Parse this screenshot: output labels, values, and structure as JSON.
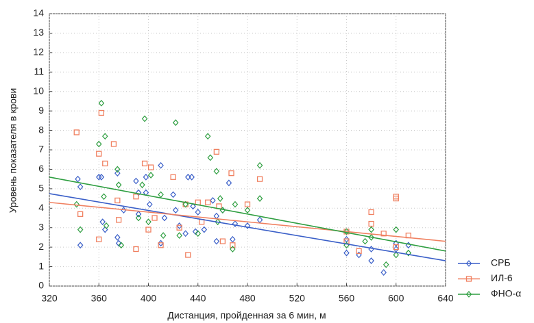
{
  "chart_data": {
    "type": "scatter",
    "x_label": "Дистанция, пройденная за 6 мин, м",
    "y_label": "Уровень показателя в крови",
    "xlim": [
      320,
      640
    ],
    "xticks": [
      320,
      360,
      400,
      440,
      480,
      520,
      560,
      600,
      640
    ],
    "ylim": [
      0,
      14
    ],
    "yticks": [
      0,
      1,
      2,
      3,
      4,
      5,
      6,
      7,
      8,
      9,
      10,
      11,
      12,
      13,
      14
    ],
    "grid": true,
    "legend": "right-bottom",
    "trend_x": [
      320,
      640
    ],
    "series": [
      {
        "name": "СРБ",
        "color": "#3a5fc8",
        "marker": "diamond",
        "trend": [
          4.75,
          1.3
        ],
        "x": [
          343,
          345,
          345,
          360,
          362,
          363,
          365,
          375,
          375,
          376,
          380,
          390,
          392,
          392,
          398,
          398,
          401,
          410,
          410,
          413,
          420,
          422,
          425,
          430,
          432,
          435,
          436,
          438,
          440,
          445,
          452,
          455,
          455,
          460,
          465,
          468,
          470,
          480,
          490,
          560,
          560,
          570,
          580,
          580,
          590,
          600,
          600,
          610
        ],
        "values": [
          5.5,
          5.1,
          2.1,
          5.6,
          5.6,
          3.3,
          2.9,
          5.8,
          2.5,
          2.2,
          3.9,
          5.4,
          4.8,
          3.7,
          5.6,
          4.8,
          4.2,
          6.2,
          2.2,
          3.5,
          4.7,
          3.9,
          3.1,
          2.7,
          5.6,
          5.6,
          4.1,
          2.8,
          3.8,
          2.9,
          4.4,
          3.6,
          2.3,
          3.9,
          5.3,
          2.4,
          3.2,
          3.1,
          3.4,
          2.4,
          1.7,
          1.6,
          1.9,
          1.3,
          0.7,
          2.2,
          1.9,
          2.1
        ]
      },
      {
        "name": "ИЛ-6",
        "color": "#f08060",
        "marker": "square",
        "trend": [
          4.3,
          2.3
        ],
        "x": [
          342,
          345,
          360,
          360,
          362,
          365,
          372,
          375,
          376,
          390,
          390,
          397,
          400,
          402,
          405,
          410,
          420,
          425,
          430,
          432,
          440,
          443,
          448,
          455,
          457,
          460,
          467,
          468,
          480,
          490,
          560,
          560,
          570,
          580,
          580,
          590,
          600,
          600,
          600,
          610
        ],
        "values": [
          7.9,
          3.7,
          6.8,
          2.4,
          8.9,
          6.3,
          7.3,
          4.4,
          3.4,
          4.6,
          1.9,
          6.3,
          2.9,
          6.1,
          3.5,
          2.1,
          5.6,
          3.0,
          4.2,
          1.6,
          4.3,
          3.3,
          4.3,
          6.9,
          4.1,
          2.3,
          5.8,
          2.1,
          4.2,
          5.5,
          2.8,
          2.3,
          1.8,
          3.8,
          3.2,
          2.7,
          4.6,
          4.5,
          2.0,
          2.6
        ]
      },
      {
        "name": "ФНО-α",
        "color": "#2e9e40",
        "marker": "diamond",
        "trend": [
          5.6,
          1.8
        ],
        "x": [
          342,
          345,
          360,
          362,
          364,
          365,
          366,
          375,
          376,
          378,
          392,
          395,
          397,
          400,
          402,
          410,
          412,
          422,
          425,
          430,
          440,
          448,
          450,
          455,
          456,
          458,
          460,
          468,
          470,
          480,
          490,
          490,
          560,
          560,
          575,
          580,
          580,
          592,
          600,
          600,
          610
        ],
        "values": [
          4.2,
          2.9,
          7.3,
          9.4,
          4.6,
          7.7,
          3.1,
          6.0,
          5.2,
          2.1,
          3.5,
          5.2,
          8.6,
          3.3,
          5.7,
          4.7,
          2.6,
          8.4,
          2.6,
          4.2,
          2.7,
          7.7,
          6.6,
          5.9,
          3.3,
          4.5,
          3.9,
          1.9,
          4.2,
          3.9,
          6.2,
          4.5,
          2.8,
          2.1,
          2.3,
          2.9,
          2.5,
          1.1,
          2.9,
          1.6,
          1.7
        ]
      }
    ]
  }
}
